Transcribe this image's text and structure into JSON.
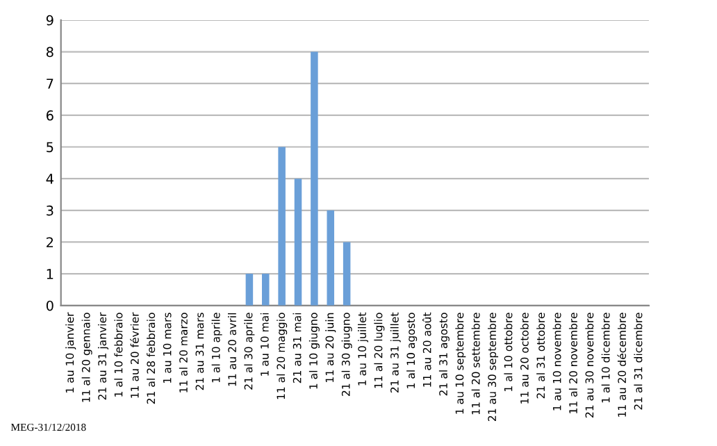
{
  "chart_data": {
    "type": "bar",
    "categories": [
      "1 au 10 janvier",
      "11 al 20 gennaio",
      "21 au 31 janvier",
      "1 al 10 febbraio",
      "11 au 20 février",
      "21 al 28 febbraio",
      "1 au 10 mars",
      "11 al 20 marzo",
      "21 au 31 mars",
      "1 al 10 aprile",
      "11 au 20 avril",
      "21 al 30 aprile",
      "1 au 10 mai",
      "11 al 20 maggio",
      "21 au 31 mai",
      "1 al 10 giugno",
      "11 au 20 juin",
      "21 al 30 giugno",
      "1 au 10 juillet",
      "11 al 20 luglio",
      "21 au 31 juillet",
      "1 al 10 agosto",
      "11 au 20 août",
      "21 al 31 agosto",
      "1 au 10 septembre",
      "11 al 20 settembre",
      "21 au 30 septembre",
      "1 al 10 ottobre",
      "11 au 20 octobre",
      "21 al 31 ottobre",
      "1 au 10 novembre",
      "11 al 20 novembre",
      "21 au 30 novembre",
      "1 al 10 dicembre",
      "11 au 20 décembre",
      "21 al 31 dicembre"
    ],
    "values": [
      0,
      0,
      0,
      0,
      0,
      0,
      0,
      0,
      0,
      0,
      0,
      1,
      1,
      5,
      4,
      8,
      3,
      2,
      0,
      0,
      0,
      0,
      0,
      0,
      0,
      0,
      0,
      0,
      0,
      0,
      0,
      0,
      0,
      0,
      0,
      0
    ],
    "color": "#6a9fd8",
    "ylim": [
      0,
      9
    ],
    "yticks": [
      0,
      1,
      2,
      3,
      4,
      5,
      6,
      7,
      8,
      9
    ],
    "grid": "y",
    "annotations": [
      "MEG-31/12/2018"
    ]
  }
}
